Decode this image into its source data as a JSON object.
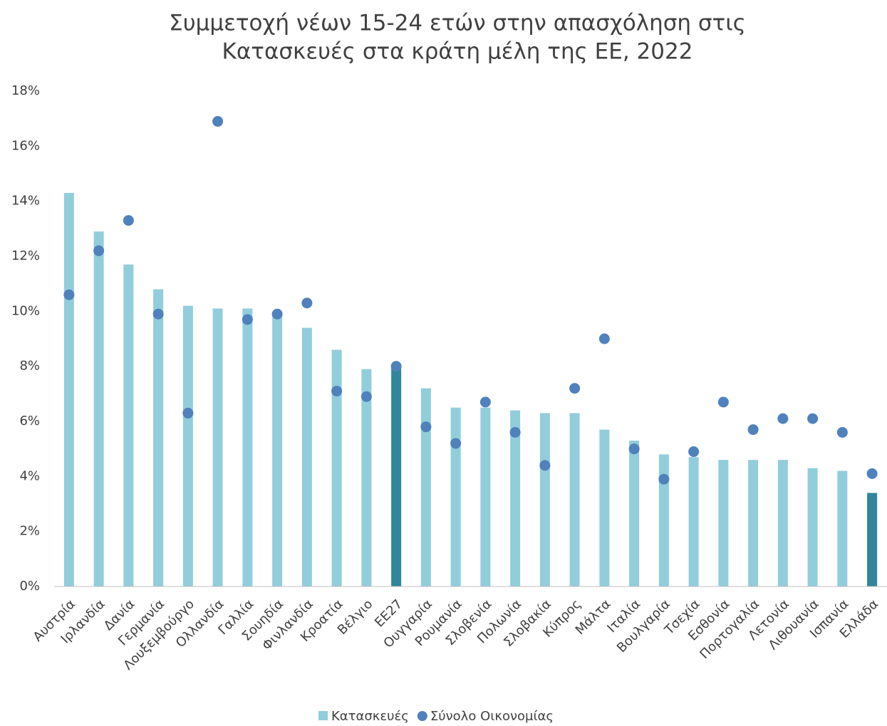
{
  "chart_data": {
    "type": "bar_dot",
    "title": [
      "Συμμετοχή νέων 15-24 ετών στην απασχόληση στις",
      "Κατασκευές στα κράτη μέλη της ΕΕ, 2022"
    ],
    "categories": [
      "Αυστρία",
      "Ιρλανδία",
      "Δανία",
      "Γερμανία",
      "Λουξεμβούργο",
      "Ολλανδία",
      "Γαλλία",
      "Σουηδία",
      "Φινλανδία",
      "Κροατία",
      "Βέλγιο",
      "ΕΕ27",
      "Ουγγαρία",
      "Ρουμανία",
      "Σλοβενία",
      "Πολωνία",
      "Σλοβακία",
      "Κύπρος",
      "Μάλτα",
      "Ιταλία",
      "Βουλγαρία",
      "Τσεχία",
      "Εσθονία",
      "Πορτογαλία",
      "Λετονία",
      "Λιθουανία",
      "Ισπανία",
      "Ελλάδα"
    ],
    "series": [
      {
        "name": "Κατασκευές",
        "kind": "bar",
        "color": "#92cddc",
        "colors": [
          "#92cddc",
          "#92cddc",
          "#92cddc",
          "#92cddc",
          "#92cddc",
          "#92cddc",
          "#92cddc",
          "#92cddc",
          "#92cddc",
          "#92cddc",
          "#92cddc",
          "#31859c",
          "#92cddc",
          "#92cddc",
          "#92cddc",
          "#92cddc",
          "#92cddc",
          "#92cddc",
          "#92cddc",
          "#92cddc",
          "#92cddc",
          "#92cddc",
          "#92cddc",
          "#92cddc",
          "#92cddc",
          "#92cddc",
          "#92cddc",
          "#31859c"
        ],
        "values": [
          14.3,
          12.9,
          11.7,
          10.8,
          10.2,
          10.1,
          10.1,
          9.9,
          9.4,
          8.6,
          7.9,
          8.0,
          7.2,
          6.5,
          6.5,
          6.4,
          6.3,
          6.3,
          5.7,
          5.3,
          4.8,
          4.7,
          4.6,
          4.6,
          4.6,
          4.3,
          4.2,
          3.4
        ]
      },
      {
        "name": "Σύνολο Οικονομίας",
        "kind": "dot",
        "color": "#4f81bd",
        "values": [
          10.6,
          12.2,
          13.3,
          9.9,
          6.3,
          16.9,
          9.7,
          9.9,
          10.3,
          7.1,
          6.9,
          8.0,
          5.8,
          5.2,
          6.7,
          5.6,
          4.4,
          7.2,
          9.0,
          5.0,
          3.9,
          4.9,
          6.7,
          5.7,
          6.1,
          6.1,
          5.6,
          4.1
        ]
      }
    ],
    "ylim": [
      0,
      18
    ],
    "yticks": [
      {
        "value": 0,
        "label": "0%"
      },
      {
        "value": 2,
        "label": "2%"
      },
      {
        "value": 4,
        "label": "4%"
      },
      {
        "value": 6,
        "label": "6%"
      },
      {
        "value": 8,
        "label": "8%"
      },
      {
        "value": 10,
        "label": "10%"
      },
      {
        "value": 12,
        "label": "12%"
      },
      {
        "value": 14,
        "label": "14%"
      },
      {
        "value": 16,
        "label": "16%"
      },
      {
        "value": 18,
        "label": "18%"
      }
    ],
    "grid": false,
    "legend": "bottom"
  }
}
